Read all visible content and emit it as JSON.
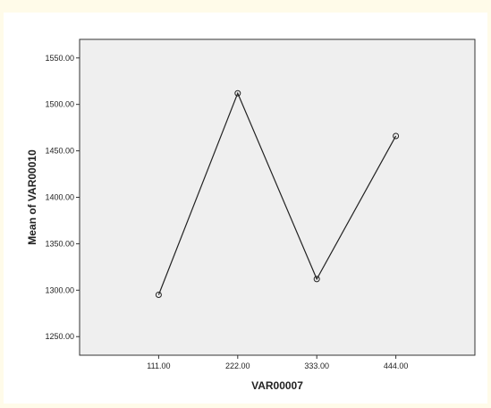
{
  "chart_data": {
    "type": "line",
    "xlabel": "VAR00007",
    "ylabel": "Mean of VAR00010",
    "categories": [
      "111.00",
      "222.00",
      "333.00",
      "444.00"
    ],
    "x": [
      111,
      222,
      333,
      444
    ],
    "xlim": [
      0,
      555
    ],
    "ylim": [
      1230,
      1570
    ],
    "yticks": [
      1250,
      1300,
      1350,
      1400,
      1450,
      1500,
      1550
    ],
    "ytick_labels": [
      "1250.00",
      "1300.00",
      "1350.00",
      "1400.00",
      "1450.00",
      "1500.00",
      "1550.00"
    ],
    "series": [
      {
        "values": [
          1295,
          1512,
          1312,
          1466
        ]
      }
    ],
    "grid": false,
    "colors": {
      "plot_background": "#efefef",
      "line": "#222222",
      "page_background": "#fffbe9"
    }
  }
}
